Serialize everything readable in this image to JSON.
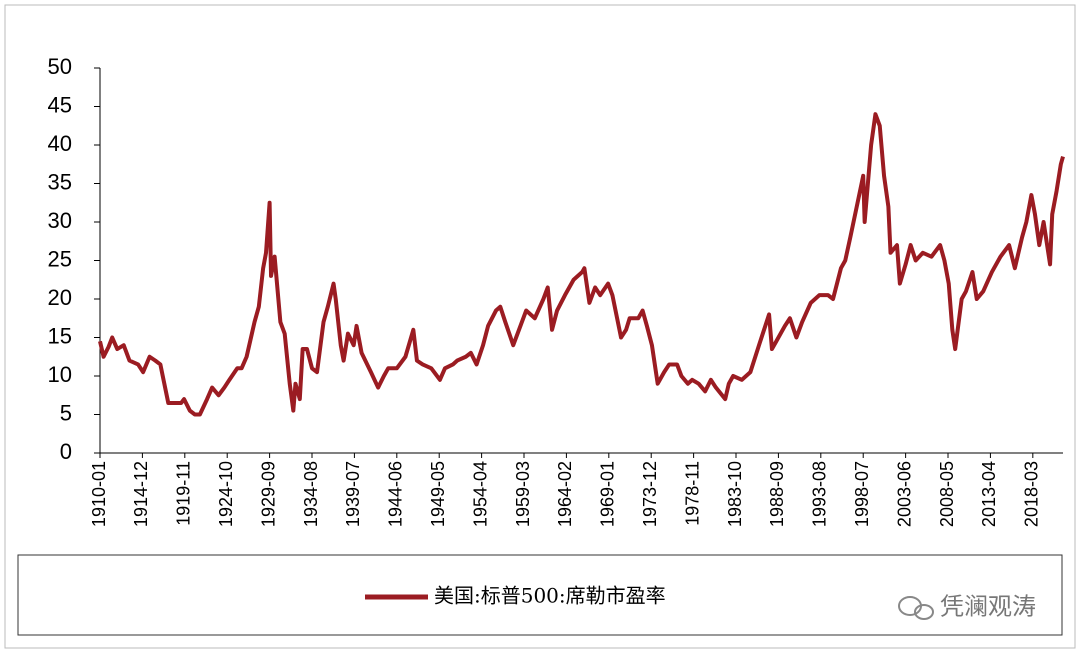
{
  "chart_data": {
    "type": "line",
    "series": [
      {
        "name": "美国:标普500:席勒市盈率",
        "color": "#9b1c22",
        "x": [
          "1910-01",
          "1910-06",
          "1911-01",
          "1911-06",
          "1912-01",
          "1912-10",
          "1913-06",
          "1914-06",
          "1915-01",
          "1915-10",
          "1916-06",
          "1917-01",
          "1917-12",
          "1918-06",
          "1919-06",
          "1919-10",
          "1920-06",
          "1921-01",
          "1921-08",
          "1922-06",
          "1923-01",
          "1923-10",
          "1924-06",
          "1925-01",
          "1925-12",
          "1926-06",
          "1927-01",
          "1927-12",
          "1928-06",
          "1928-12",
          "1929-04",
          "1929-09",
          "1929-11",
          "1930-04",
          "1930-12",
          "1931-06",
          "1932-01",
          "1932-06",
          "1932-09",
          "1933-03",
          "1933-07",
          "1934-01",
          "1934-08",
          "1935-03",
          "1935-12",
          "1936-06",
          "1937-02",
          "1937-05",
          "1937-12",
          "1938-04",
          "1938-10",
          "1939-06",
          "1939-10",
          "1940-05",
          "1941-06",
          "1942-04",
          "1942-12",
          "1943-06",
          "1944-06",
          "1945-06",
          "1946-05",
          "1946-10",
          "1947-06",
          "1948-06",
          "1949-06",
          "1950-01",
          "1950-12",
          "1951-06",
          "1952-06",
          "1953-01",
          "1953-09",
          "1954-06",
          "1955-01",
          "1955-12",
          "1956-06",
          "1957-01",
          "1957-12",
          "1958-06",
          "1959-06",
          "1960-06",
          "1961-06",
          "1961-12",
          "1962-06",
          "1963-01",
          "1963-12",
          "1964-12",
          "1965-12",
          "1966-03",
          "1966-10",
          "1967-06",
          "1968-01",
          "1968-12",
          "1969-06",
          "1970-06",
          "1971-01",
          "1971-06",
          "1972-06",
          "1972-12",
          "1973-06",
          "1974-01",
          "1974-09",
          "1975-06",
          "1976-01",
          "1976-12",
          "1977-06",
          "1978-03",
          "1978-09",
          "1979-06",
          "1980-03",
          "1980-11",
          "1981-06",
          "1982-07",
          "1982-12",
          "1983-06",
          "1984-06",
          "1985-06",
          "1986-06",
          "1987-08",
          "1987-12",
          "1988-06",
          "1989-06",
          "1990-01",
          "1990-10",
          "1991-06",
          "1992-06",
          "1993-06",
          "1994-06",
          "1995-01",
          "1995-12",
          "1996-06",
          "1997-01",
          "1997-10",
          "1998-07",
          "1998-09",
          "1999-06",
          "1999-12",
          "2000-06",
          "2000-12",
          "2001-06",
          "2001-09",
          "2002-06",
          "2002-10",
          "2003-06",
          "2004-01",
          "2004-08",
          "2005-06",
          "2006-06",
          "2007-06",
          "2007-12",
          "2008-06",
          "2008-11",
          "2009-03",
          "2009-12",
          "2010-06",
          "2011-03",
          "2011-09",
          "2012-06",
          "2013-06",
          "2014-06",
          "2015-06",
          "2016-02",
          "2016-12",
          "2017-06",
          "2018-01",
          "2018-06",
          "2018-12",
          "2019-06",
          "2020-03",
          "2020-06",
          "2020-12",
          "2021-06",
          "2021-09"
        ],
        "values": [
          14.5,
          12.5,
          13.8,
          15,
          13.5,
          14,
          12,
          11.5,
          10.5,
          12.5,
          12,
          11.5,
          6.5,
          6.5,
          6.5,
          7,
          5.5,
          5,
          5,
          7,
          8.5,
          7.5,
          8.5,
          9.5,
          11,
          11,
          12.5,
          17,
          19,
          24,
          26,
          32.5,
          23,
          25.5,
          17,
          15.5,
          9,
          5.5,
          9,
          7,
          13.5,
          13.5,
          11,
          10.5,
          17,
          19,
          22,
          20,
          14,
          12,
          15.5,
          14,
          16.5,
          13,
          10.5,
          8.5,
          10,
          11,
          11,
          12.5,
          16,
          12,
          11.5,
          11,
          9.5,
          11,
          11.5,
          12,
          12.5,
          13,
          11.5,
          14,
          16.5,
          18.5,
          19,
          17,
          14,
          15.5,
          18.5,
          17.5,
          20,
          21.5,
          16,
          18.5,
          20.5,
          22.5,
          23.5,
          24,
          19.5,
          21.5,
          20.5,
          22,
          20.5,
          15,
          16,
          17.5,
          17.5,
          18.5,
          16.5,
          14,
          9,
          10.5,
          11.5,
          11.5,
          10,
          9,
          9.5,
          9,
          8,
          9.5,
          8.5,
          7,
          9,
          10,
          9.5,
          10.5,
          14,
          18,
          13.5,
          14.5,
          16.5,
          17.5,
          15,
          17,
          19.5,
          20.5,
          20.5,
          20,
          24,
          25,
          28,
          32,
          36,
          30,
          40,
          44,
          42.5,
          36,
          32,
          26,
          27,
          22,
          24.5,
          27,
          25,
          26,
          25.5,
          27,
          25,
          22,
          16,
          13.5,
          20,
          21,
          23.5,
          20,
          21,
          23.5,
          25.5,
          27,
          24,
          28,
          30,
          33.5,
          31,
          27,
          30,
          24.5,
          31,
          34,
          37.5,
          38.5
        ]
      }
    ],
    "xlim": [
      "1910-01",
      "2021-09"
    ],
    "xticks": [
      "1910-01",
      "1914-12",
      "1919-11",
      "1924-10",
      "1929-09",
      "1934-08",
      "1939-07",
      "1944-06",
      "1949-05",
      "1954-04",
      "1959-03",
      "1964-02",
      "1969-01",
      "1973-12",
      "1978-11",
      "1983-10",
      "1988-09",
      "1993-08",
      "1998-07",
      "2003-06",
      "2008-05",
      "2013-04",
      "2018-03"
    ],
    "ylim": [
      0,
      50
    ],
    "yticks": [
      0,
      5,
      10,
      15,
      20,
      25,
      30,
      35,
      40,
      45,
      50
    ],
    "grid": false,
    "legend": "bottom",
    "watermark": "凭澜观涛"
  }
}
